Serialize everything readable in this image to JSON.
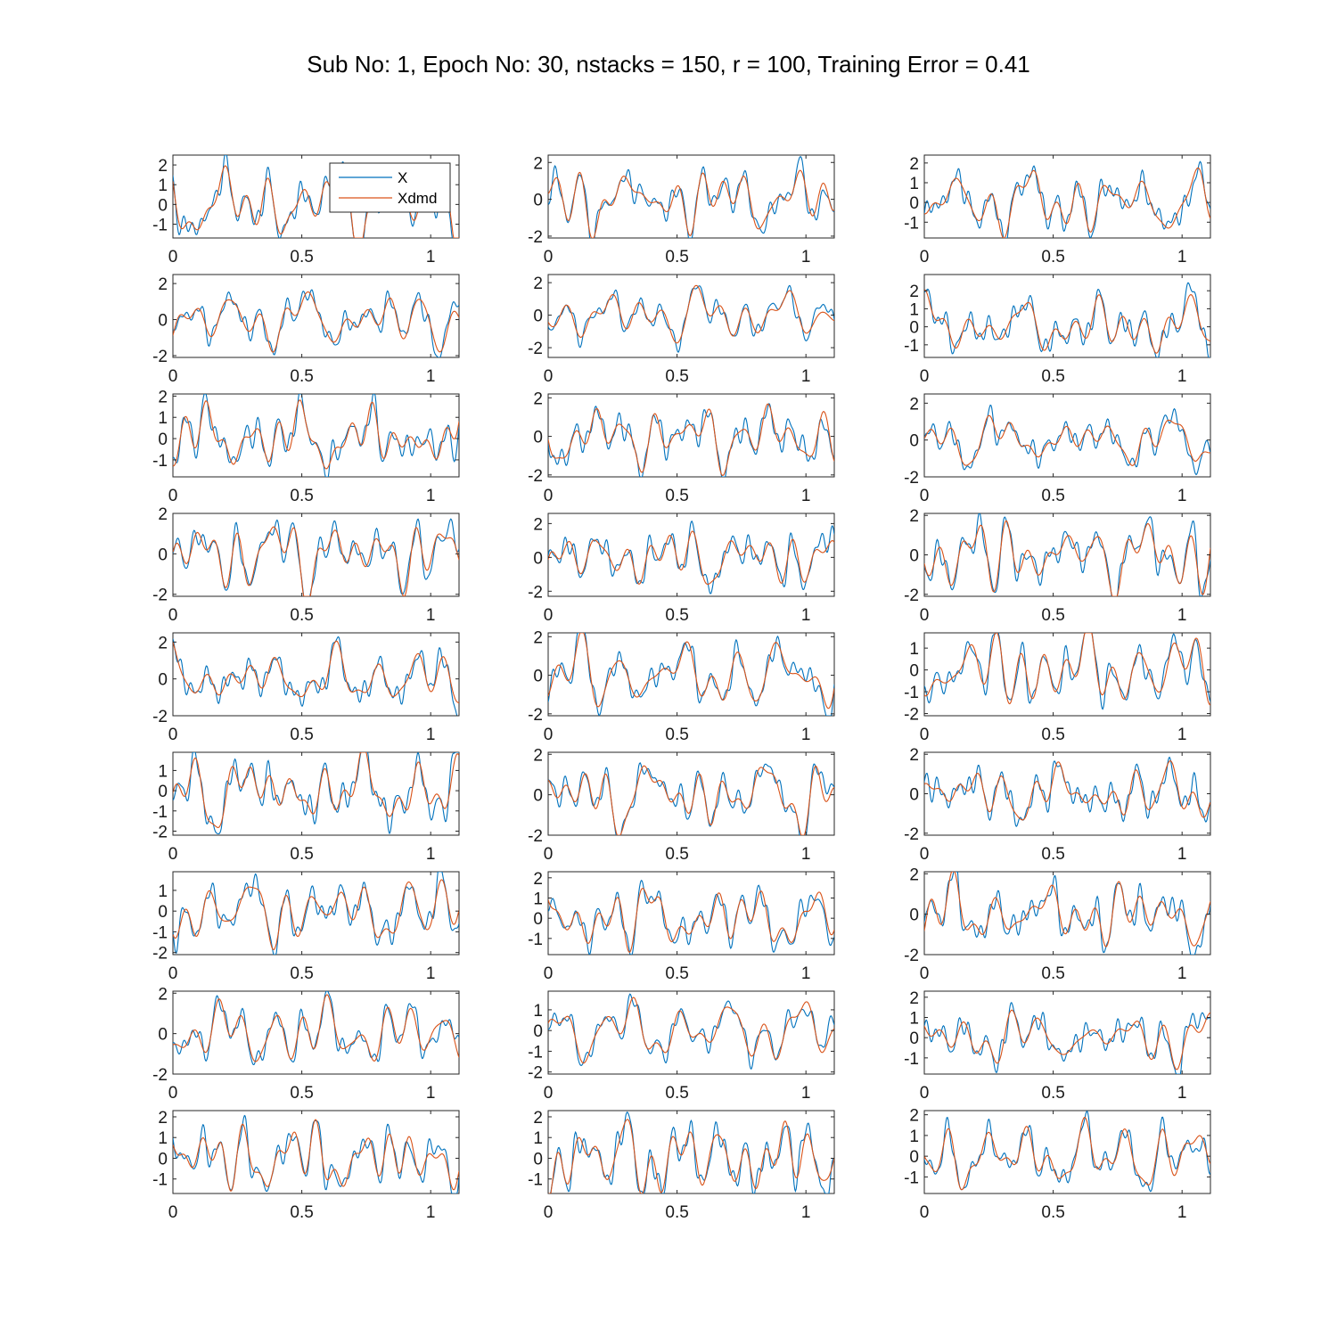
{
  "chart_data": {
    "type": "line",
    "title": "Sub No: 1, Epoch No: 30, nstacks = 150, r = 100, Training Error = 0.41",
    "layout": "9 rows x 3 columns of subplots",
    "series": [
      {
        "name": "X",
        "color": "#0072BD"
      },
      {
        "name": "Xdmd",
        "color": "#D95319"
      }
    ],
    "legend": {
      "location": "top-right of first subplot",
      "entries": [
        "X",
        "Xdmd"
      ]
    },
    "xlim": [
      0,
      1.11
    ],
    "xticks": [
      "0",
      "0.5",
      "1"
    ],
    "grid": false,
    "subplots": [
      {
        "ylim": [
          -1.7,
          2.5
        ],
        "yticks": [
          [
            "2",
            2
          ],
          [
            "1",
            1
          ],
          [
            "0",
            0
          ],
          [
            "-1",
            -1
          ]
        ]
      },
      {
        "ylim": [
          -2.1,
          2.4
        ],
        "yticks": [
          [
            "2",
            2
          ],
          [
            "0",
            0
          ],
          [
            "-2",
            -2
          ]
        ]
      },
      {
        "ylim": [
          -1.8,
          2.4
        ],
        "yticks": [
          [
            "2",
            2
          ],
          [
            "1",
            1
          ],
          [
            "0",
            0
          ],
          [
            "-1",
            -1
          ]
        ]
      },
      {
        "ylim": [
          -2.1,
          2.5
        ],
        "yticks": [
          [
            "2",
            2
          ],
          [
            "0",
            0
          ],
          [
            "-2",
            -2
          ]
        ]
      },
      {
        "ylim": [
          -2.6,
          2.5
        ],
        "yticks": [
          [
            "2",
            2
          ],
          [
            "0",
            0
          ],
          [
            "-2",
            -2
          ]
        ]
      },
      {
        "ylim": [
          -1.7,
          2.9
        ],
        "yticks": [
          [
            "2",
            2
          ],
          [
            "1",
            1
          ],
          [
            "0",
            0
          ],
          [
            "-1",
            -1
          ]
        ]
      },
      {
        "ylim": [
          -1.8,
          2.1
        ],
        "yticks": [
          [
            "2",
            2
          ],
          [
            "1",
            1
          ],
          [
            "0",
            0
          ],
          [
            "-1",
            -1
          ]
        ]
      },
      {
        "ylim": [
          -2.1,
          2.2
        ],
        "yticks": [
          [
            "2",
            2
          ],
          [
            "0",
            0
          ],
          [
            "-2",
            -2
          ]
        ]
      },
      {
        "ylim": [
          -2.0,
          2.5
        ],
        "yticks": [
          [
            "2",
            2
          ],
          [
            "0",
            0
          ],
          [
            "-2",
            -2
          ]
        ]
      },
      {
        "ylim": [
          -2.1,
          2.0
        ],
        "yticks": [
          [
            "2",
            2
          ],
          [
            "0",
            0
          ],
          [
            "-2",
            -2
          ]
        ]
      },
      {
        "ylim": [
          -2.3,
          2.6
        ],
        "yticks": [
          [
            "2",
            2
          ],
          [
            "0",
            0
          ],
          [
            "-2",
            -2
          ]
        ]
      },
      {
        "ylim": [
          -2.1,
          2.1
        ],
        "yticks": [
          [
            "2",
            2
          ],
          [
            "0",
            0
          ],
          [
            "-2",
            -2
          ]
        ]
      },
      {
        "ylim": [
          -2.0,
          2.5
        ],
        "yticks": [
          [
            "2",
            2
          ],
          [
            "0",
            0
          ],
          [
            "-2",
            -2
          ]
        ]
      },
      {
        "ylim": [
          -2.1,
          2.2
        ],
        "yticks": [
          [
            "2",
            2
          ],
          [
            "0",
            0
          ],
          [
            "-2",
            -2
          ]
        ]
      },
      {
        "ylim": [
          -2.1,
          1.7
        ],
        "yticks": [
          [
            "1",
            1
          ],
          [
            "0",
            0
          ],
          [
            "-1",
            -1
          ],
          [
            "-2",
            -2
          ]
        ]
      },
      {
        "ylim": [
          -2.2,
          1.9
        ],
        "yticks": [
          [
            "1",
            1
          ],
          [
            "0",
            0
          ],
          [
            "-1",
            -1
          ],
          [
            "-2",
            -2
          ]
        ]
      },
      {
        "ylim": [
          -2.0,
          2.1
        ],
        "yticks": [
          [
            "2",
            2
          ],
          [
            "0",
            0
          ],
          [
            "-2",
            -2
          ]
        ]
      },
      {
        "ylim": [
          -2.1,
          2.1
        ],
        "yticks": [
          [
            "2",
            2
          ],
          [
            "0",
            0
          ],
          [
            "-2",
            -2
          ]
        ]
      },
      {
        "ylim": [
          -2.1,
          1.9
        ],
        "yticks": [
          [
            "1",
            1
          ],
          [
            "0",
            0
          ],
          [
            "-1",
            -1
          ],
          [
            "-2",
            -2
          ]
        ]
      },
      {
        "ylim": [
          -1.8,
          2.3
        ],
        "yticks": [
          [
            "2",
            2
          ],
          [
            "1",
            1
          ],
          [
            "0",
            0
          ],
          [
            "-1",
            -1
          ]
        ]
      },
      {
        "ylim": [
          -2.0,
          2.1
        ],
        "yticks": [
          [
            "2",
            2
          ],
          [
            "0",
            0
          ],
          [
            "-2",
            -2
          ]
        ]
      },
      {
        "ylim": [
          -2.0,
          2.1
        ],
        "yticks": [
          [
            "2",
            2
          ],
          [
            "0",
            0
          ],
          [
            "-2",
            -2
          ]
        ]
      },
      {
        "ylim": [
          -2.1,
          1.9
        ],
        "yticks": [
          [
            "1",
            1
          ],
          [
            "0",
            0
          ],
          [
            "-1",
            -1
          ],
          [
            "-2",
            -2
          ]
        ]
      },
      {
        "ylim": [
          -1.8,
          2.3
        ],
        "yticks": [
          [
            "2",
            2
          ],
          [
            "1",
            1
          ],
          [
            "0",
            0
          ],
          [
            "-1",
            -1
          ]
        ]
      },
      {
        "ylim": [
          -1.7,
          2.3
        ],
        "yticks": [
          [
            "2",
            2
          ],
          [
            "1",
            1
          ],
          [
            "0",
            0
          ],
          [
            "-1",
            -1
          ]
        ]
      },
      {
        "ylim": [
          -1.7,
          2.3
        ],
        "yticks": [
          [
            "2",
            2
          ],
          [
            "1",
            1
          ],
          [
            "0",
            0
          ],
          [
            "-1",
            -1
          ]
        ]
      },
      {
        "ylim": [
          -1.8,
          2.2
        ],
        "yticks": [
          [
            "2",
            2
          ],
          [
            "1",
            1
          ],
          [
            "0",
            0
          ],
          [
            "-1",
            -1
          ]
        ]
      }
    ]
  }
}
